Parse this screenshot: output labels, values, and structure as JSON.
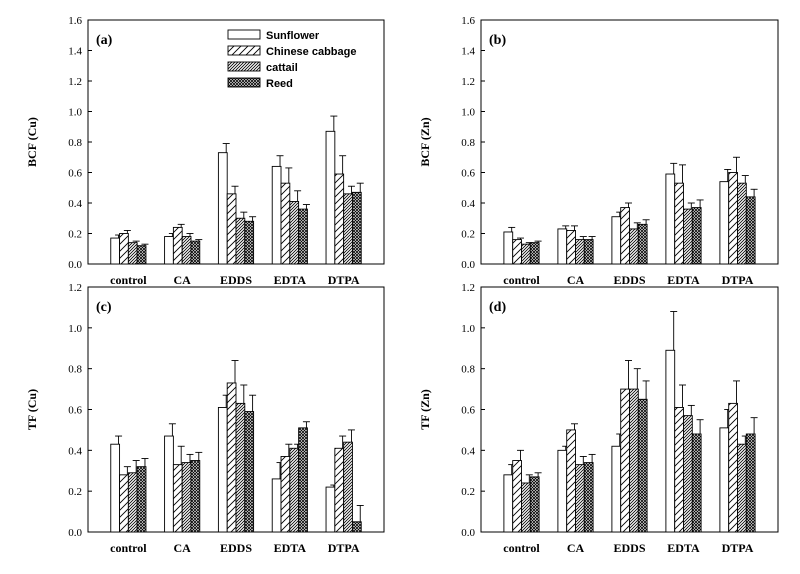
{
  "chart_data": [
    {
      "type": "bar",
      "panel_label": "(a)",
      "ylabel": "BCF (Cu)",
      "ylim": [
        0,
        1.6
      ],
      "yticks": [
        "0.0",
        "0.2",
        "0.4",
        "0.6",
        "0.8",
        "1.0",
        "1.2",
        "1.4",
        "1.6"
      ],
      "categories": [
        "control",
        "CA",
        "EDDS",
        "EDTA",
        "DTPA"
      ],
      "legend_position": "top-right",
      "series": [
        {
          "name": "Sunflower",
          "values": [
            0.17,
            0.18,
            0.73,
            0.64,
            0.87
          ],
          "errors": [
            0.02,
            0.02,
            0.06,
            0.07,
            0.1
          ]
        },
        {
          "name": "Chinese cabbage",
          "values": [
            0.2,
            0.24,
            0.46,
            0.53,
            0.59
          ],
          "errors": [
            0.02,
            0.02,
            0.05,
            0.1,
            0.12
          ]
        },
        {
          "name": "cattail",
          "values": [
            0.14,
            0.18,
            0.3,
            0.41,
            0.46
          ],
          "errors": [
            0.01,
            0.02,
            0.04,
            0.07,
            0.05
          ]
        },
        {
          "name": "Reed",
          "values": [
            0.12,
            0.15,
            0.28,
            0.36,
            0.47
          ],
          "errors": [
            0.01,
            0.01,
            0.03,
            0.03,
            0.06
          ]
        }
      ]
    },
    {
      "type": "bar",
      "panel_label": "(b)",
      "ylabel": "BCF (Zn)",
      "ylim": [
        0,
        1.6
      ],
      "yticks": [
        "0.0",
        "0.2",
        "0.4",
        "0.6",
        "0.8",
        "1.0",
        "1.2",
        "1.4",
        "1.6"
      ],
      "categories": [
        "control",
        "CA",
        "EDDS",
        "EDTA",
        "DTPA"
      ],
      "series": [
        {
          "name": "Sunflower",
          "values": [
            0.21,
            0.23,
            0.31,
            0.59,
            0.54
          ],
          "errors": [
            0.03,
            0.02,
            0.03,
            0.07,
            0.08
          ]
        },
        {
          "name": "Chinese cabbage",
          "values": [
            0.16,
            0.22,
            0.37,
            0.53,
            0.6
          ],
          "errors": [
            0.01,
            0.03,
            0.03,
            0.12,
            0.1
          ]
        },
        {
          "name": "cattail",
          "values": [
            0.13,
            0.16,
            0.23,
            0.36,
            0.53
          ],
          "errors": [
            0.01,
            0.02,
            0.04,
            0.04,
            0.05
          ]
        },
        {
          "name": "Reed",
          "values": [
            0.14,
            0.16,
            0.26,
            0.37,
            0.44
          ],
          "errors": [
            0.01,
            0.02,
            0.03,
            0.05,
            0.05
          ]
        }
      ]
    },
    {
      "type": "bar",
      "panel_label": "(c)",
      "ylabel": "TF (Cu)",
      "ylim": [
        0,
        1.2
      ],
      "yticks": [
        "0.0",
        "0.2",
        "0.4",
        "0.6",
        "0.8",
        "1.0",
        "1.2"
      ],
      "categories": [
        "control",
        "CA",
        "EDDS",
        "EDTA",
        "DTPA"
      ],
      "series": [
        {
          "name": "Sunflower",
          "values": [
            0.43,
            0.47,
            0.61,
            0.26,
            0.22
          ],
          "errors": [
            0.04,
            0.06,
            0.06,
            0.08,
            0.01
          ]
        },
        {
          "name": "Chinese cabbage",
          "values": [
            0.28,
            0.33,
            0.73,
            0.37,
            0.41
          ],
          "errors": [
            0.04,
            0.09,
            0.11,
            0.06,
            0.06
          ]
        },
        {
          "name": "cattail",
          "values": [
            0.29,
            0.34,
            0.63,
            0.41,
            0.44
          ],
          "errors": [
            0.06,
            0.04,
            0.09,
            0.02,
            0.06
          ]
        },
        {
          "name": "Reed",
          "values": [
            0.32,
            0.35,
            0.59,
            0.51,
            0.05
          ],
          "errors": [
            0.04,
            0.04,
            0.08,
            0.03,
            0.08
          ]
        }
      ]
    },
    {
      "type": "bar",
      "panel_label": "(d)",
      "ylabel": "TF (Zn)",
      "ylim": [
        0,
        1.2
      ],
      "yticks": [
        "0.0",
        "0.2",
        "0.4",
        "0.6",
        "0.8",
        "1.0",
        "1.2"
      ],
      "categories": [
        "control",
        "CA",
        "EDDS",
        "EDTA",
        "DTPA"
      ],
      "series": [
        {
          "name": "Sunflower",
          "values": [
            0.28,
            0.4,
            0.42,
            0.89,
            0.51
          ],
          "errors": [
            0.05,
            0.02,
            0.06,
            0.19,
            0.09
          ]
        },
        {
          "name": "Chinese cabbage",
          "values": [
            0.35,
            0.5,
            0.7,
            0.61,
            0.63
          ],
          "errors": [
            0.05,
            0.03,
            0.14,
            0.11,
            0.11
          ]
        },
        {
          "name": "cattail",
          "values": [
            0.24,
            0.33,
            0.7,
            0.57,
            0.43
          ],
          "errors": [
            0.04,
            0.04,
            0.1,
            0.05,
            0.04
          ]
        },
        {
          "name": "Reed",
          "values": [
            0.27,
            0.34,
            0.65,
            0.48,
            0.48
          ],
          "errors": [
            0.02,
            0.04,
            0.09,
            0.07,
            0.08
          ]
        }
      ]
    }
  ],
  "patterns": {
    "Sunflower": "blank",
    "Chinese cabbage": "wide-diagonal",
    "cattail": "dense-diagonal",
    "Reed": "crosshatch"
  },
  "colors": {
    "bar_outline": "#000000",
    "fill": "#ffffff",
    "background": "#ffffff"
  }
}
